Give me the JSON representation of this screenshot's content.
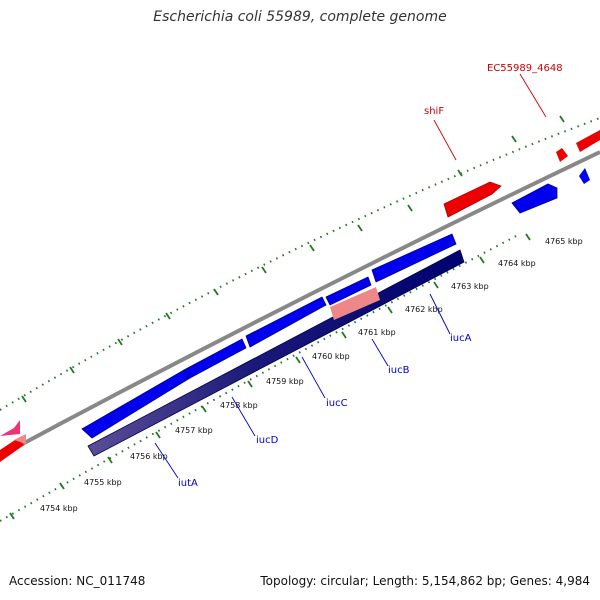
{
  "title": "Escherichia coli 55989, complete genome",
  "footer": {
    "accession": "Accession: NC_011748",
    "summary": "Topology: circular; Length: 5,154,862 bp; Genes: 4,984"
  },
  "scale_labels": [
    "4754 kbp",
    "4755 kbp",
    "4756 kbp",
    "4757 kbp",
    "4758 kbp",
    "4759 kbp",
    "4760 kbp",
    "4761 kbp",
    "4762 kbp",
    "4763 kbp",
    "4764 kbp",
    "4765 kbp"
  ],
  "gene_labels": [
    "iutA",
    "iucD",
    "iucC",
    "iucB",
    "iucA",
    "shiF",
    "EC55989_4648"
  ],
  "colors": {
    "forward_gene": "#0000ee",
    "selected_gene": "#000080",
    "highlight_gene": "#ee0000",
    "pink_gene": "#ee3377",
    "light_red_gene": "#ee8888",
    "forward_label": "#0000cc",
    "reverse_label": "#cc0000",
    "backbone": "#888888",
    "ticks": "#227722"
  }
}
